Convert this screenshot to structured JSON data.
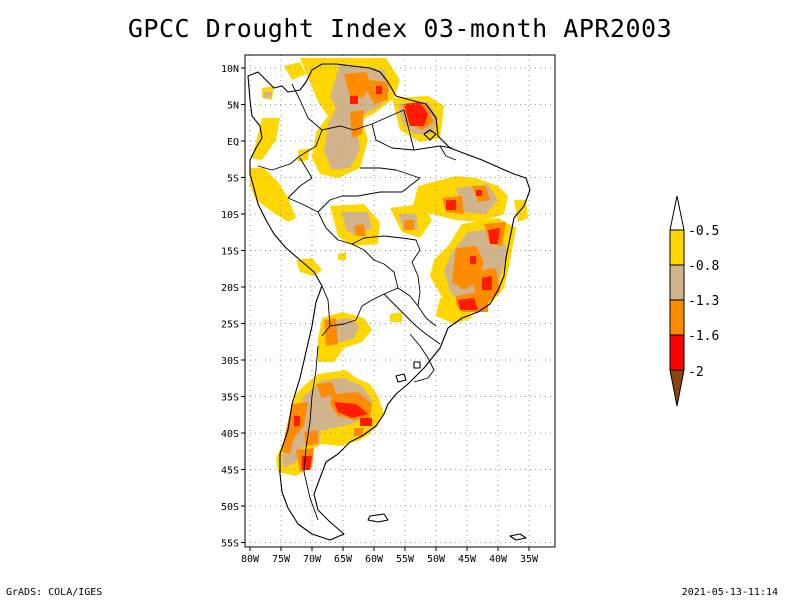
{
  "title": "GPCC Drought Index 03-month APR2003",
  "footer": {
    "left": "GrADS: COLA/IGES",
    "right": "2021-05-13-11:14"
  },
  "map": {
    "lon_range": [
      -81,
      -30
    ],
    "lat_range": [
      -56,
      11
    ],
    "x_ticks": [
      "80W",
      "75W",
      "70W",
      "65W",
      "60W",
      "55W",
      "50W",
      "45W",
      "40W",
      "35W"
    ],
    "y_ticks": [
      "10N",
      "5N",
      "EQ",
      "5S",
      "10S",
      "15S",
      "20S",
      "25S",
      "30S",
      "35S",
      "40S",
      "45S",
      "50S",
      "55S"
    ],
    "grid": "dotted"
  },
  "legend": {
    "labels": [
      "-0.5",
      "-0.8",
      "-1.3",
      "-1.6",
      "-2"
    ],
    "colors": {
      "above": "#ffffff",
      "c1": "#ffd700",
      "c2": "#d2b48c",
      "c3": "#ff8c00",
      "c4": "#ff0000",
      "below": "#8b4513"
    }
  },
  "palette": {
    "moderate": "#ffd700",
    "severe": "#d2b48c",
    "very_severe": "#ff8c00",
    "extreme": "#ff3300"
  }
}
